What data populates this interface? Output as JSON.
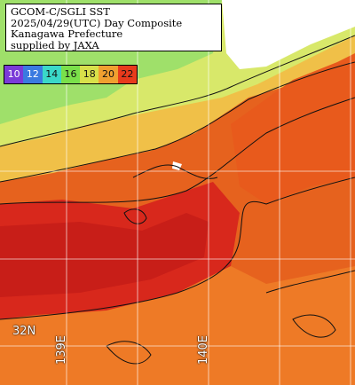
{
  "title": {
    "line1": "GCOM-C/SGLI SST",
    "line2": "2025/04/29(UTC) Day Composite",
    "line3": "Kanagawa Prefecture",
    "line4": "supplied by JAXA"
  },
  "colors": {
    "land": "#ffffff",
    "cold_shelf": "#9fe06a",
    "cool": "#d8e86a",
    "mild": "#f0c048",
    "warm": "#f08a2a",
    "hot": "#e3521a",
    "hottest": "#d8281c",
    "contour": "#111111",
    "grid": "#ffffff"
  },
  "scale": {
    "labels": [
      "10",
      "12",
      "14",
      "16",
      "18",
      "20",
      "22"
    ],
    "colors": [
      "#7a3ad8",
      "#3a7ae0",
      "#3ad8c8",
      "#7ae04a",
      "#d8e04a",
      "#f0a030",
      "#e83a1c"
    ]
  },
  "grid_labels": {
    "lat": "32N",
    "lon1": "139E",
    "lon2": "140E"
  }
}
